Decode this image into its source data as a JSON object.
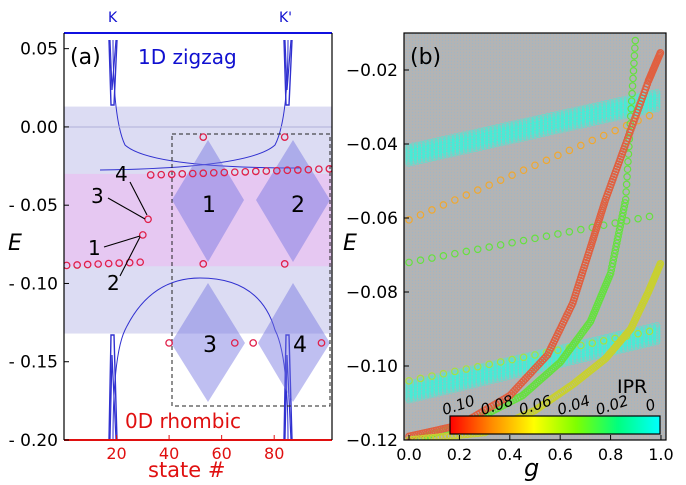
{
  "chart_data": [
    {
      "type": "scatter",
      "panel_label": "(a)",
      "ylabel": "E",
      "xlabel": "state #",
      "xticks": [
        20,
        40,
        60,
        80
      ],
      "yticks": [
        0.05,
        0.0,
        -0.05,
        -0.1,
        -0.15,
        -0.2
      ],
      "ytick_labels": [
        "0.05",
        "0.00",
        "- 0.05",
        "- 0.10",
        "- 0.15",
        "- 0.20"
      ],
      "xlim": [
        0,
        102
      ],
      "ylim": [
        -0.2,
        0.06
      ],
      "top_axis_labels": [
        "K",
        "K'"
      ],
      "top_axis_label_x": [
        18,
        84
      ],
      "annotations": {
        "top": "1D zigzag",
        "bottom": "0D rhombic",
        "numbers": [
          "1",
          "2",
          "3",
          "4",
          "1",
          "2",
          "3",
          "4"
        ]
      },
      "bands": [
        {
          "y": [
            -0.132,
            0.013
          ],
          "color": "#dcdcf3"
        },
        {
          "y": [
            -0.089,
            -0.03
          ],
          "color": "#e6c8f2"
        }
      ],
      "series": [
        {
          "points": [
            {
              "x": 1,
              "y": -0.0885
            },
            {
              "x": 5,
              "y": -0.0882
            },
            {
              "x": 9,
              "y": -0.0879
            },
            {
              "x": 13,
              "y": -0.0876
            },
            {
              "x": 17,
              "y": -0.0873
            },
            {
              "x": 21,
              "y": -0.087
            },
            {
              "x": 25,
              "y": -0.0867
            },
            {
              "x": 29,
              "y": -0.0864
            },
            {
              "x": 30,
              "y": -0.069
            },
            {
              "x": 32,
              "y": -0.059
            },
            {
              "x": 33,
              "y": -0.0307
            },
            {
              "x": 37,
              "y": -0.0305
            },
            {
              "x": 41,
              "y": -0.0303
            },
            {
              "x": 45,
              "y": -0.03
            },
            {
              "x": 49,
              "y": -0.0298
            },
            {
              "x": 53,
              "y": -0.0296
            },
            {
              "x": 57,
              "y": -0.0293
            },
            {
              "x": 61,
              "y": -0.0291
            },
            {
              "x": 65,
              "y": -0.0289
            },
            {
              "x": 69,
              "y": -0.0287
            },
            {
              "x": 73,
              "y": -0.0284
            },
            {
              "x": 77,
              "y": -0.0282
            },
            {
              "x": 81,
              "y": -0.028
            },
            {
              "x": 85,
              "y": -0.0277
            },
            {
              "x": 89,
              "y": -0.0275
            },
            {
              "x": 93,
              "y": -0.0273
            },
            {
              "x": 97,
              "y": -0.027
            },
            {
              "x": 101,
              "y": -0.0268
            },
            {
              "x": 53,
              "y": -0.0065
            },
            {
              "x": 84,
              "y": -0.0065
            },
            {
              "x": 53,
              "y": -0.0875
            },
            {
              "x": 84,
              "y": -0.0875
            },
            {
              "x": 40,
              "y": -0.138
            },
            {
              "x": 65,
              "y": -0.138
            },
            {
              "x": 72,
              "y": -0.138
            },
            {
              "x": 98,
              "y": -0.138
            }
          ]
        }
      ]
    },
    {
      "type": "scatter",
      "panel_label": "(b)",
      "ylabel": "E",
      "xlabel": "g",
      "xticks": [
        0.0,
        0.2,
        0.4,
        0.6,
        0.8,
        1.0
      ],
      "xtick_labels": [
        "0.0",
        "0.2",
        "0.4",
        "0.6",
        "0.8",
        "1.0"
      ],
      "yticks": [
        -0.02,
        -0.04,
        -0.06,
        -0.08,
        -0.1,
        -0.12
      ],
      "ytick_labels": [
        "−0.02",
        "−0.04",
        "−0.06",
        "−0.08",
        "−0.10",
        "−0.12"
      ],
      "xlim": [
        -0.02,
        1.02
      ],
      "ylim": [
        -0.12,
        -0.01
      ],
      "colorbar": {
        "label": "IPR",
        "ticks": [
          "0.10",
          "0.08",
          "0.06",
          "0.04",
          "0.02",
          "0"
        ],
        "colors": [
          "#ff0000",
          "#ffa500",
          "#ffff00",
          "#7fff00",
          "#00ff7f",
          "#00ffff"
        ]
      },
      "series": [
        {
          "name": "",
          "color": "#3ff0d8",
          "x": [
            0.0,
            1.0
          ],
          "y": [
            -0.043,
            -0.028
          ]
        },
        {
          "name": "",
          "color": "#f0a830",
          "x": [
            0.0,
            1.0
          ],
          "y": [
            -0.0605,
            -0.031
          ]
        },
        {
          "name": "",
          "color": "#66e040",
          "x": [
            0.0,
            1.0
          ],
          "y": [
            -0.072,
            -0.059
          ]
        },
        {
          "name": "",
          "color": "#3ff0d8",
          "x": [
            0.0,
            1.0
          ],
          "y": [
            -0.107,
            -0.091
          ]
        },
        {
          "name": "",
          "color": "#a8e040",
          "x": [
            0.0,
            1.0
          ],
          "y": [
            -0.104,
            -0.09
          ]
        },
        {
          "name": "",
          "color": "#66e040",
          "x": [
            0.02,
            0.25,
            0.45,
            0.6,
            0.72,
            0.8,
            0.86,
            0.9
          ],
          "y": [
            -0.12,
            -0.115,
            -0.108,
            -0.099,
            -0.088,
            -0.075,
            -0.055,
            -0.01
          ]
        },
        {
          "name": "",
          "color": "#e06040",
          "x": [
            0.0,
            0.2,
            0.4,
            0.55,
            0.65,
            0.72,
            0.78,
            0.86,
            0.95,
            1.0
          ],
          "y": [
            -0.119,
            -0.116,
            -0.108,
            -0.097,
            -0.083,
            -0.068,
            -0.055,
            -0.04,
            -0.023,
            -0.015
          ]
        },
        {
          "name": "",
          "color": "#c8d030",
          "x": [
            0.0,
            0.3,
            0.5,
            0.65,
            0.78,
            0.88,
            0.95,
            1.0
          ],
          "y": [
            -0.12,
            -0.118,
            -0.112,
            -0.105,
            -0.098,
            -0.09,
            -0.08,
            -0.072
          ]
        }
      ]
    }
  ]
}
